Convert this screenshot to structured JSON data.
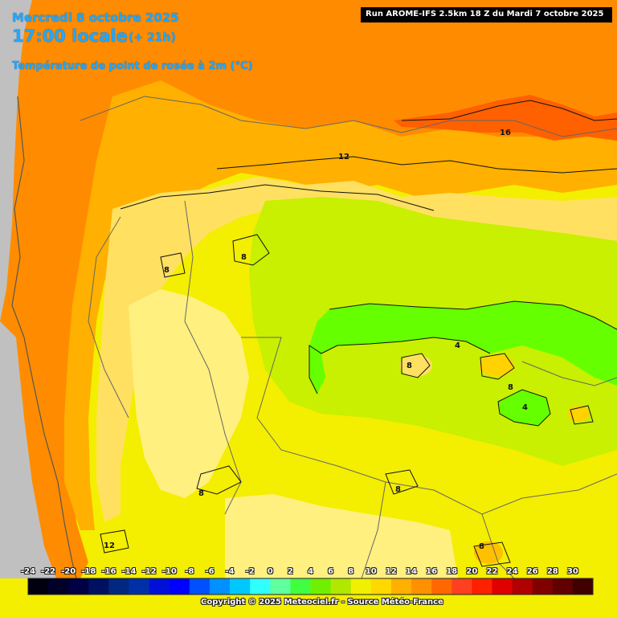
{
  "header": {
    "date": "Mercredi 8 octobre 2025",
    "local_time": "17:00 locale",
    "lead_time": "(+ 21h)",
    "parameter": "Température de point de rosée à 2m (°C)",
    "run": "Run AROME-IFS 2.5km 18 Z du Mardi 7 octobre 2025"
  },
  "contour_labels": [
    {
      "id": "label-16",
      "text": "16"
    },
    {
      "id": "label-12-north",
      "text": "12"
    },
    {
      "id": "label-8-west",
      "text": "8"
    },
    {
      "id": "label-8-center",
      "text": "8"
    },
    {
      "id": "label-4",
      "text": "4"
    },
    {
      "id": "label-8-east",
      "text": "8"
    },
    {
      "id": "label-8-mid",
      "text": "8"
    },
    {
      "id": "label-4-east",
      "text": "4"
    },
    {
      "id": "label-8-south",
      "text": "8"
    },
    {
      "id": "label-8-southwest",
      "text": "8"
    },
    {
      "id": "label-12-south",
      "text": "12"
    },
    {
      "id": "label-8-southeast",
      "text": "8"
    }
  ],
  "colorbar": {
    "ticks": [
      "-24",
      "-22",
      "-20",
      "-18",
      "-16",
      "-14",
      "-12",
      "-10",
      "-8",
      "-6",
      "-4",
      "-2",
      "0",
      "2",
      "4",
      "6",
      "8",
      "10",
      "12",
      "14",
      "16",
      "18",
      "20",
      "22",
      "24",
      "26",
      "28",
      "30"
    ],
    "colors": [
      "#000010",
      "#000028",
      "#000044",
      "#001060",
      "#002880",
      "#0030a8",
      "#0010d8",
      "#0000ff",
      "#0050ff",
      "#0090ff",
      "#00c8ff",
      "#30ffff",
      "#60ffa0",
      "#40ff40",
      "#70f000",
      "#b0e800",
      "#f0f000",
      "#ffd800",
      "#ffb000",
      "#ff9000",
      "#ff6800",
      "#ff4020",
      "#ff2000",
      "#e00000",
      "#b00000",
      "#800000",
      "#600000",
      "#400000"
    ]
  },
  "map_colors": {
    "sea": "#ff8c00",
    "land_outside": "#c0c0c0",
    "yellow": "#f4ee00",
    "light_yellow": "#fff080",
    "green": "#66ff00",
    "lime": "#c8f000",
    "orange": "#ffc000",
    "dark_orange": "#ff6000"
  },
  "copyright": "Copyright © 2025 Meteociel.fr - Source Météo-France"
}
